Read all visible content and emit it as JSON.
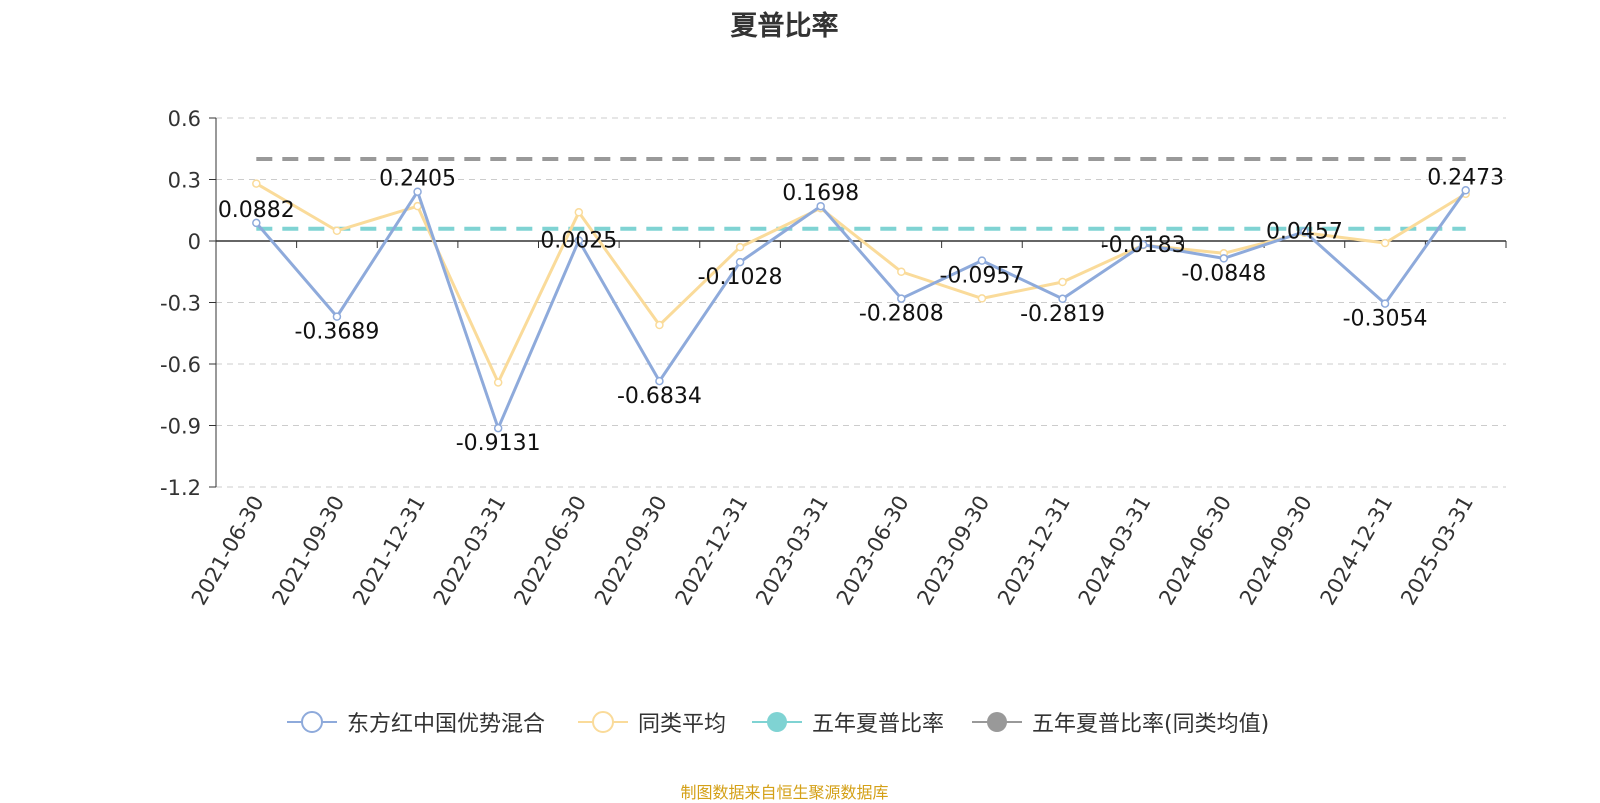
{
  "chart_data": {
    "type": "line",
    "title": "夏普比率",
    "categories": [
      "2021-06-30",
      "2021-09-30",
      "2021-12-31",
      "2022-03-31",
      "2022-06-30",
      "2022-09-30",
      "2022-12-31",
      "2023-03-31",
      "2023-06-30",
      "2023-09-30",
      "2023-12-31",
      "2024-03-31",
      "2024-06-30",
      "2024-09-30",
      "2024-12-31",
      "2025-03-31"
    ],
    "ylim": [
      -1.2,
      0.6
    ],
    "yticks": [
      "0.6",
      "0.3",
      "0",
      "-0.3",
      "-0.6",
      "-0.9",
      "-1.2"
    ],
    "grid": true,
    "legend_position": "bottom",
    "series": [
      {
        "name": "东方红中国优势混合",
        "color": "#8eaadb",
        "values": [
          0.0882,
          -0.3689,
          0.2405,
          -0.9131,
          0.0025,
          -0.6834,
          -0.1028,
          0.1698,
          -0.2808,
          -0.0957,
          -0.2819,
          -0.0183,
          -0.0848,
          0.0457,
          -0.3054,
          0.2473
        ],
        "labels": [
          "0.0882",
          "-0.3689",
          "0.2405",
          "-0.9131",
          "0.0025",
          "-0.6834",
          "-0.1028",
          "0.1698",
          "-0.2808",
          "-0.0957",
          "-0.2819",
          "-0.0183",
          "-0.0848",
          "0.0457",
          "-0.3054",
          "0.2473"
        ]
      },
      {
        "name": "同类平均",
        "color": "#fadb9a",
        "values": [
          0.28,
          0.05,
          0.17,
          -0.69,
          0.14,
          -0.41,
          -0.03,
          0.16,
          -0.15,
          -0.28,
          -0.2,
          -0.02,
          -0.06,
          0.04,
          -0.01,
          0.23
        ]
      },
      {
        "name": "五年夏普比率",
        "color": "#7fd3d3",
        "value": 0.06
      },
      {
        "name": "五年夏普比率(同类均值)",
        "color": "#999999",
        "value": 0.4
      }
    ],
    "source": "制图数据来自恒生聚源数据库"
  }
}
